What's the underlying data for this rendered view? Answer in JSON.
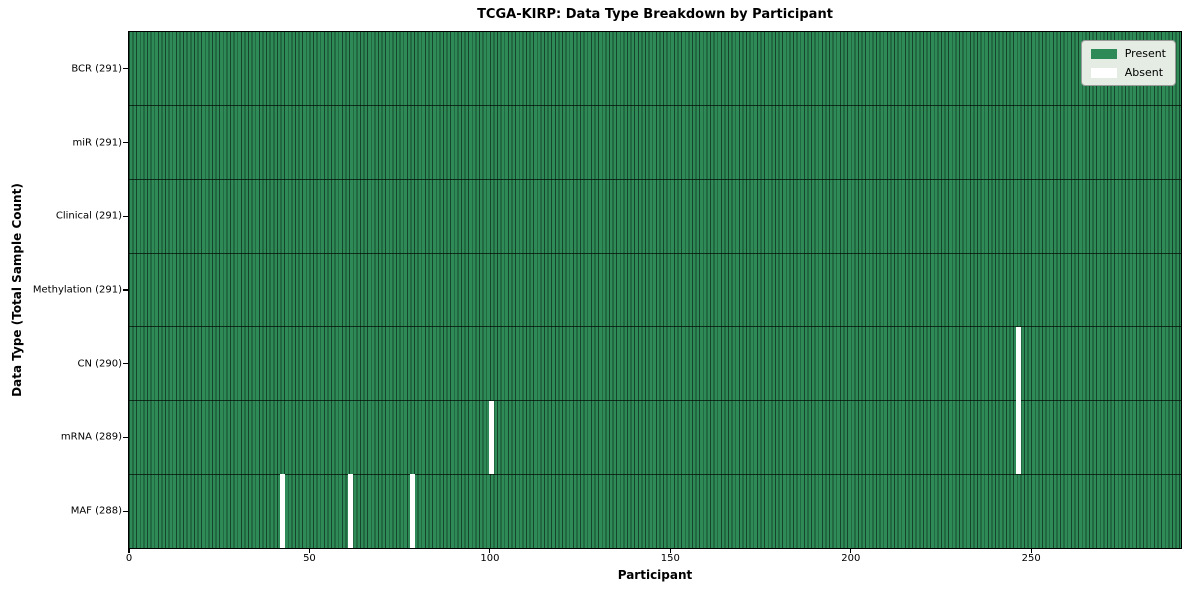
{
  "chart_data": {
    "type": "heatmap",
    "title": "TCGA-KIRP: Data Type Breakdown by Participant",
    "xlabel": "Participant",
    "ylabel": "Data Type (Total Sample Count)",
    "x_ticks": [
      0,
      50,
      100,
      150,
      200,
      250
    ],
    "xlim": [
      0,
      291.5
    ],
    "n_participants": 291,
    "rows": [
      {
        "name": "BCR",
        "label": "BCR (291)",
        "count": 291,
        "absent_participants": []
      },
      {
        "name": "miR",
        "label": "miR (291)",
        "count": 291,
        "absent_participants": []
      },
      {
        "name": "Clinical",
        "label": "Clinical (291)",
        "count": 291,
        "absent_participants": []
      },
      {
        "name": "Methylation",
        "label": "Methylation (291)",
        "count": 291,
        "absent_participants": []
      },
      {
        "name": "CN",
        "label": "CN (290)",
        "count": 290,
        "absent_participants": [
          246
        ]
      },
      {
        "name": "mRNA",
        "label": "mRNA (289)",
        "count": 289,
        "absent_participants": [
          100,
          246
        ]
      },
      {
        "name": "MAF",
        "label": "MAF (288)",
        "count": 288,
        "absent_participants": [
          42,
          61,
          78
        ]
      }
    ],
    "legend": {
      "position": "upper-right",
      "entries": [
        {
          "label": "Present",
          "color": "#2e8b57"
        },
        {
          "label": "Absent",
          "color": "#ffffff"
        }
      ]
    },
    "colors": {
      "present": "#2e8b57",
      "absent": "#ffffff",
      "cell_line": "rgba(0,0,0,0.5)",
      "row_divider": "rgba(0,0,0,0.65)",
      "spine": "#000000",
      "legend_bg": "#e4ece4",
      "legend_border": "#9a9a9a"
    },
    "grid": false
  }
}
